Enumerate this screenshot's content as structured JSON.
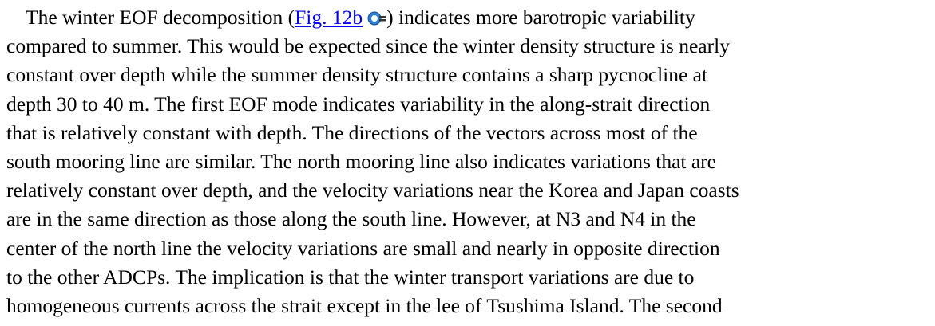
{
  "paragraph": {
    "before": "The winter EOF decomposition (",
    "link": "Fig. 12b",
    "after": ") indicates more barotropic variability",
    "lines": [
      "compared to summer. This would be expected since the winter density structure is nearly",
      "constant over depth while the summer density structure contains a sharp pycnocline at",
      "depth 30 to 40 m. The first EOF mode indicates variability in the along-strait direction",
      "that is relatively constant with depth. The directions of the vectors across most of the",
      "south mooring line are similar. The north mooring line also indicates variations that are",
      "relatively constant over depth, and the velocity variations near the Korea and Japan coasts",
      "are in the same direction as those along the south line. However, at N3 and N4 in the",
      "center of the north line the velocity variations are small and nearly in opposite direction",
      "to the other ADCPs. The implication is that the winter transport variations are due to",
      "homogeneous currents across the strait except in the lee of Tsushima Island. The second"
    ]
  }
}
